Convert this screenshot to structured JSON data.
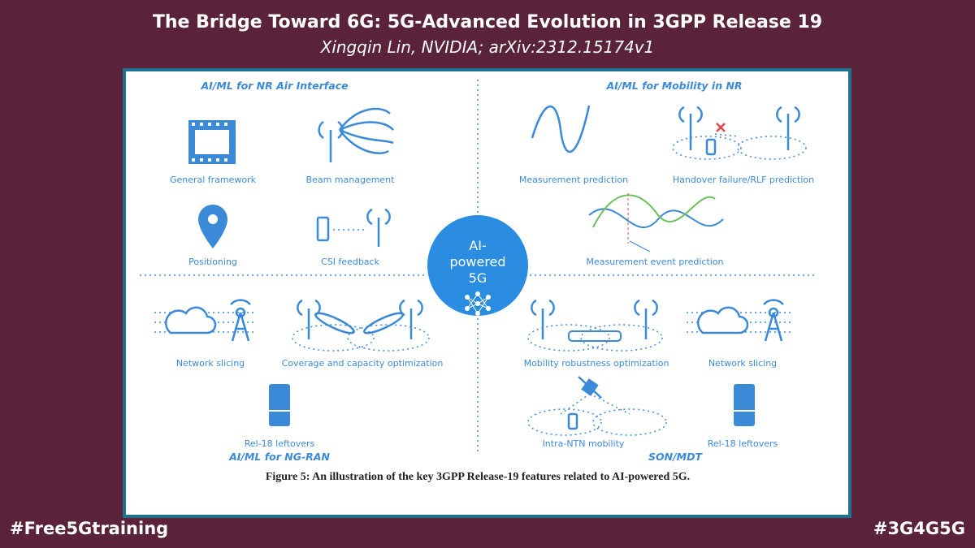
{
  "header": {
    "title": "The Bridge Toward 6G: 5G-Advanced Evolution in 3GPP Release 19",
    "subtitle": "Xingqin Lin, NVIDIA; arXiv:2312.15174v1"
  },
  "figure": {
    "sections": [
      "AI/ML for NR Air Interface",
      "AI/ML for Mobility in NR",
      "AI/ML for NG-RAN",
      "SON/MDT"
    ],
    "center": [
      "AI-",
      "powered",
      "5G"
    ],
    "items": [
      "General framework",
      "Beam management",
      "Positioning",
      "CSI feedback",
      "Measurement prediction",
      "Handover failure/RLF prediction",
      "Measurement event prediction",
      "Network slicing",
      "Coverage and capacity optimization",
      "Rel-18 leftovers",
      "Mobility robustness optimization",
      "Network slicing",
      "Intra-NTN mobility",
      "Rel-18 leftovers"
    ],
    "caption": "Figure 5: An illustration of the key 3GPP Release-19 features related to AI-powered 5G."
  },
  "footer": {
    "left": "#Free5Gtraining",
    "right": "#3G4G5G"
  }
}
